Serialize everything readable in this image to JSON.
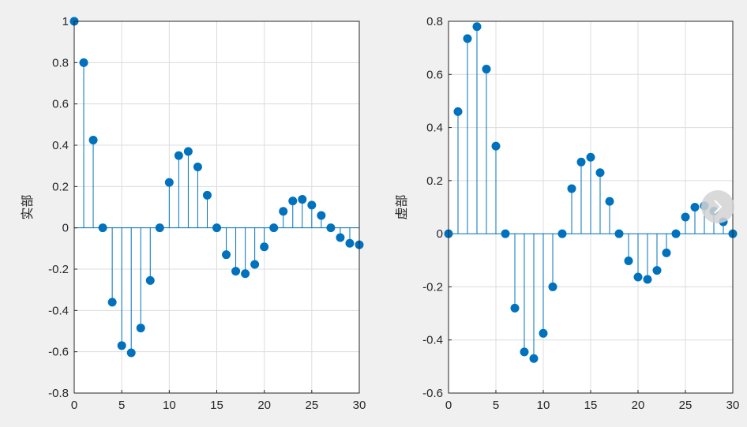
{
  "chart_data": [
    {
      "type": "stem",
      "ylabel": "实部",
      "xlim": [
        0,
        30
      ],
      "ylim": [
        -0.8,
        1
      ],
      "xticks": [
        0,
        5,
        10,
        15,
        20,
        25,
        30
      ],
      "yticks": [
        -0.8,
        -0.6,
        -0.4,
        -0.2,
        0,
        0.2,
        0.4,
        0.6,
        0.8,
        1
      ],
      "grid": true,
      "color": "#0072bd",
      "x": [
        0,
        1,
        2,
        3,
        4,
        5,
        6,
        7,
        8,
        9,
        10,
        11,
        12,
        13,
        14,
        15,
        16,
        17,
        18,
        19,
        20,
        21,
        22,
        23,
        24,
        25,
        26,
        27,
        28,
        29,
        30
      ],
      "y": [
        1,
        0.8,
        0.425,
        0,
        -0.36,
        -0.57,
        -0.605,
        -0.485,
        -0.255,
        0,
        0.22,
        0.35,
        0.37,
        0.295,
        0.158,
        0,
        -0.13,
        -0.21,
        -0.222,
        -0.177,
        -0.092,
        0,
        0.08,
        0.13,
        0.138,
        0.11,
        0.06,
        0,
        -0.047,
        -0.075,
        -0.082
      ]
    },
    {
      "type": "stem",
      "ylabel": "虚部",
      "xlim": [
        0,
        30
      ],
      "ylim": [
        -0.6,
        0.8
      ],
      "xticks": [
        0,
        5,
        10,
        15,
        20,
        25,
        30
      ],
      "yticks": [
        -0.6,
        -0.4,
        -0.2,
        0,
        0.2,
        0.4,
        0.6,
        0.8
      ],
      "grid": true,
      "color": "#0072bd",
      "x": [
        0,
        1,
        2,
        3,
        4,
        5,
        6,
        7,
        8,
        9,
        10,
        11,
        12,
        13,
        14,
        15,
        16,
        17,
        18,
        19,
        20,
        21,
        22,
        23,
        24,
        25,
        26,
        27,
        28,
        29,
        30
      ],
      "y": [
        0,
        0.46,
        0.735,
        0.78,
        0.62,
        0.33,
        0,
        -0.28,
        -0.445,
        -0.47,
        -0.375,
        -0.2,
        0,
        0.17,
        0.27,
        0.288,
        0.23,
        0.122,
        0,
        -0.102,
        -0.163,
        -0.172,
        -0.138,
        -0.072,
        0,
        0.063,
        0.1,
        0.105,
        0.085,
        0.045,
        0
      ]
    }
  ],
  "toolbar": {
    "nav_icon": "chevron-right-icon"
  }
}
